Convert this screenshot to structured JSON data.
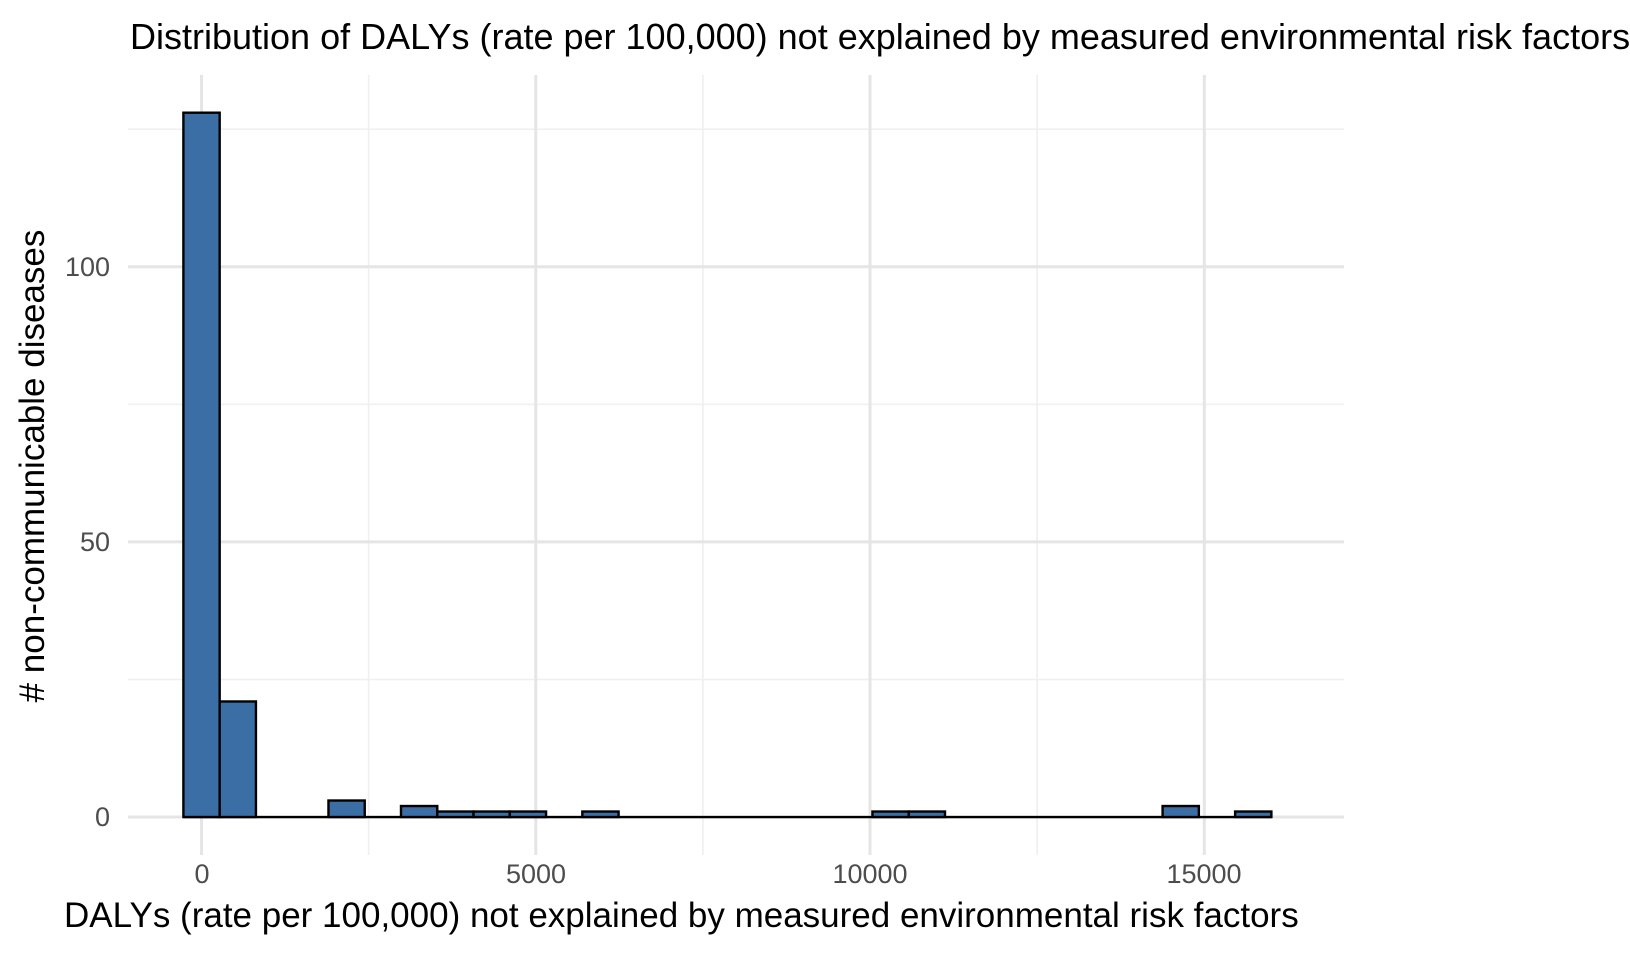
{
  "chart_data": {
    "type": "bar",
    "subtype": "histogram",
    "title": "Distribution of DALYs (rate per 100,000) not explained by measured environmental risk factors",
    "xlabel": "DALYs (rate per 100,000) not explained by measured environmental risk factors",
    "ylabel": "# non-communicable diseases",
    "bin_width": 542.5,
    "bins": [
      {
        "center": 0,
        "count": 128
      },
      {
        "center": 542.5,
        "count": 21
      },
      {
        "center": 2170,
        "count": 3
      },
      {
        "center": 3255,
        "count": 2
      },
      {
        "center": 3797.5,
        "count": 1
      },
      {
        "center": 4340,
        "count": 1
      },
      {
        "center": 4882.5,
        "count": 1
      },
      {
        "center": 5967.5,
        "count": 1
      },
      {
        "center": 10307.5,
        "count": 1
      },
      {
        "center": 10850,
        "count": 1
      },
      {
        "center": 14647.5,
        "count": 2
      },
      {
        "center": 15732.5,
        "count": 1
      }
    ],
    "zero_count_bin_span": [
      -271.25,
      16003.75
    ],
    "x_ticks": [
      0,
      5000,
      10000,
      15000
    ],
    "x_tick_labels": [
      "0",
      "5000",
      "10000",
      "15000"
    ],
    "y_ticks": [
      0,
      50,
      100
    ],
    "y_tick_labels": [
      "0",
      "50",
      "100"
    ],
    "x_minor_ticks": [
      2500,
      7500,
      12500
    ],
    "y_minor_ticks": [
      25,
      75,
      125
    ],
    "xlim": [
      -1100,
      17090
    ],
    "ylim": [
      -6.9,
      134.85
    ],
    "grid": true,
    "legend": false,
    "colors": {
      "bar_fill": "#3B6EA5",
      "bar_stroke": "#000000",
      "grid_major": "#E5E5E5",
      "grid_minor": "#F0F0F0",
      "tick_label": "#4d4d4d",
      "title_text": "#000000",
      "background": "#FFFFFF"
    }
  }
}
